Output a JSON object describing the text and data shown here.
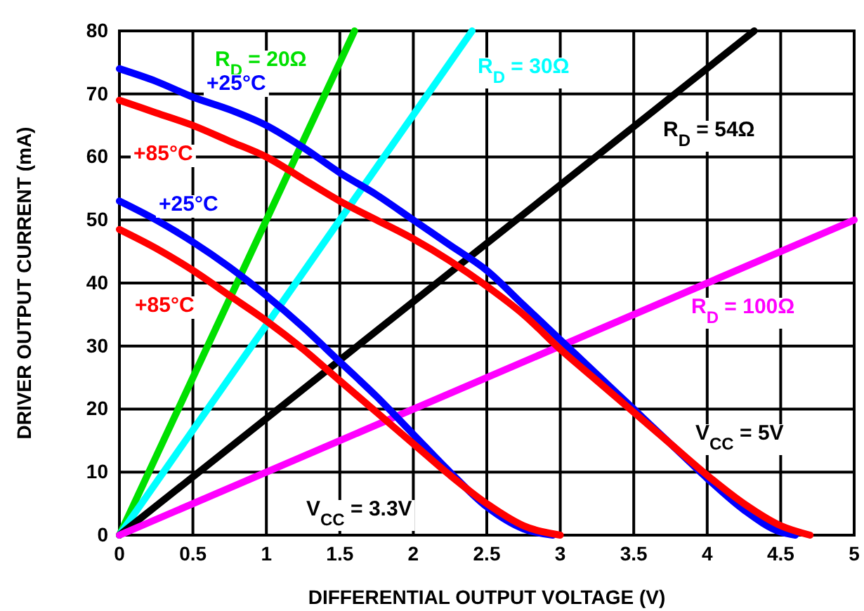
{
  "chart_data": {
    "type": "line",
    "xlabel": "DIFFERENTIAL OUTPUT VOLTAGE (V)",
    "ylabel": "DRIVER OUTPUT CURRENT (mA)",
    "xlim": [
      0,
      5
    ],
    "xticks": [
      0,
      0.5,
      1,
      1.5,
      2,
      2.5,
      3,
      3.5,
      4,
      4.5,
      5
    ],
    "ylim": [
      0,
      80
    ],
    "yticks": [
      0,
      10,
      20,
      30,
      40,
      50,
      60,
      70,
      80
    ],
    "grid": true,
    "line_style": "solid",
    "marker": "none",
    "series": [
      {
        "name": "R$_{D}$ = 20Ω",
        "color": "#00e000",
        "x": [
          0,
          1.6
        ],
        "values": [
          0,
          80
        ]
      },
      {
        "name": "R$_{D}$ = 30Ω",
        "color": "#00ffff",
        "x": [
          0,
          2.4
        ],
        "values": [
          0,
          80
        ]
      },
      {
        "name": "R$_{D}$ = 54Ω",
        "color": "#000000",
        "x": [
          0,
          4.32
        ],
        "values": [
          0,
          80
        ]
      },
      {
        "name": "R$_{D}$ = 100Ω",
        "color": "#ff00ff",
        "x": [
          0,
          5
        ],
        "values": [
          0,
          50
        ]
      },
      {
        "name": "+25°C",
        "color": "#0000ff",
        "x": [
          0,
          0.25,
          0.5,
          0.75,
          1,
          1.25,
          1.5,
          1.75,
          2,
          2.25,
          2.5,
          2.75,
          3,
          3.25,
          3.5,
          3.75,
          4,
          4.25,
          4.5,
          4.6
        ],
        "values": [
          74,
          72,
          69.5,
          67.5,
          65,
          61.5,
          57.5,
          54,
          50,
          46,
          42,
          36.5,
          31,
          25.5,
          20,
          14.5,
          9,
          4,
          0.5,
          0
        ]
      },
      {
        "name": "+85°C",
        "color": "#ff0000",
        "x": [
          0,
          0.25,
          0.5,
          0.75,
          1,
          1.25,
          1.5,
          1.75,
          2,
          2.25,
          2.5,
          2.75,
          3,
          3.25,
          3.5,
          3.75,
          4,
          4.25,
          4.5,
          4.7
        ],
        "values": [
          69,
          67,
          65,
          62.5,
          60,
          56.5,
          53,
          50,
          47,
          43.5,
          39.5,
          35,
          29.5,
          24.5,
          19.5,
          14.5,
          9.5,
          5,
          1.5,
          0
        ]
      },
      {
        "name": "+25°C",
        "color": "#0000ff",
        "x": [
          0,
          0.25,
          0.5,
          0.75,
          1,
          1.25,
          1.5,
          1.75,
          2,
          2.25,
          2.5,
          2.75,
          2.95
        ],
        "values": [
          53,
          50,
          46.5,
          42.5,
          38,
          33,
          27.5,
          22,
          16,
          10,
          4.5,
          1,
          0
        ]
      },
      {
        "name": "+85°C",
        "color": "#ff0000",
        "x": [
          0,
          0.25,
          0.5,
          0.75,
          1,
          1.25,
          1.5,
          1.75,
          2,
          2.25,
          2.5,
          2.75,
          3
        ],
        "values": [
          48.5,
          45.5,
          42,
          38,
          34,
          29.5,
          24.5,
          19.5,
          14.5,
          9.5,
          5,
          1.5,
          0
        ]
      }
    ],
    "annotations": [
      "V$_{CC}$ = 5V",
      "V$_{CC}$ = 3.3V"
    ]
  }
}
